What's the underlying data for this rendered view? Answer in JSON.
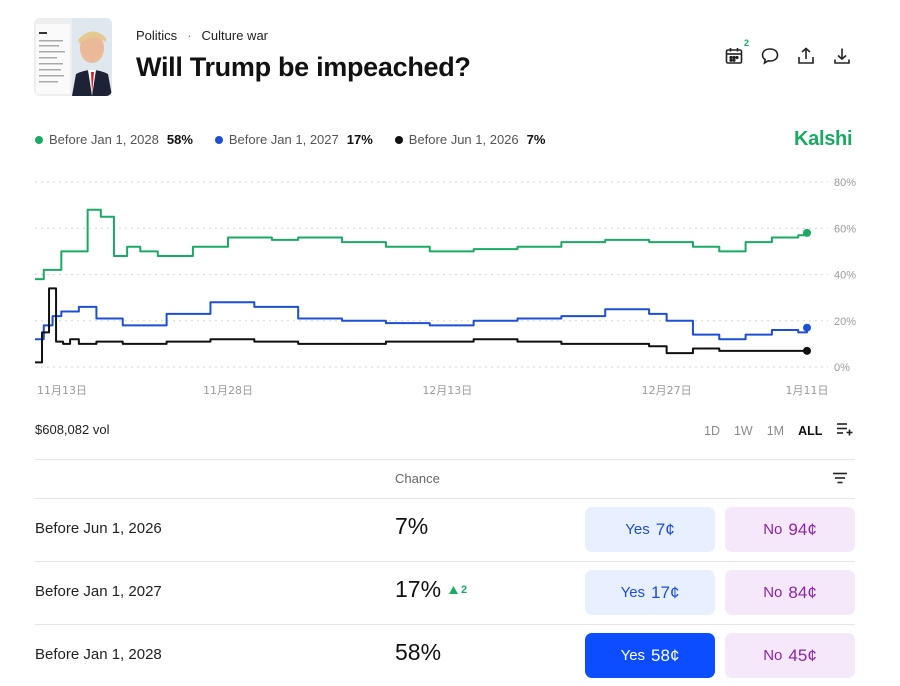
{
  "header": {
    "breadcrumb": [
      "Politics",
      "Culture war"
    ],
    "title": "Will Trump be impeached?"
  },
  "toolbar": {
    "calendar_badge": "2"
  },
  "brand": "Kalshi",
  "legend": [
    {
      "label": "Before Jan 1, 2028",
      "value": "58%",
      "color": "#1aaa64"
    },
    {
      "label": "Before Jan 1, 2027",
      "value": "17%",
      "color": "#1d4fd6"
    },
    {
      "label": "Before Jun 1, 2026",
      "value": "7%",
      "color": "#111111"
    }
  ],
  "chart_data": {
    "type": "line",
    "x_ticks": [
      "11月13日",
      "11月28日",
      "12月13日",
      "12月27日",
      "1月11日"
    ],
    "y_ticks": [
      "80%",
      "60%",
      "40%",
      "20%",
      "0%"
    ],
    "ylim": [
      0,
      80
    ],
    "grid": true,
    "series": [
      {
        "name": "Before Jan 1, 2028",
        "color": "#1aaa64",
        "x": [
          0,
          1,
          3,
          6,
          7.5,
          9,
          10.5,
          12,
          14,
          18,
          22,
          27,
          30,
          35,
          40,
          45,
          50,
          55,
          60,
          65,
          70,
          75,
          78,
          81,
          84,
          87,
          88
        ],
        "values": [
          38,
          42,
          50,
          68,
          65,
          48,
          52,
          50,
          48,
          52,
          56,
          55,
          56,
          54,
          52,
          50,
          51,
          52,
          54,
          55,
          54,
          52,
          50,
          54,
          56,
          57,
          58
        ]
      },
      {
        "name": "Before Jan 1, 2027",
        "color": "#1d4fd6",
        "x": [
          0,
          1,
          2,
          3,
          5,
          7,
          10,
          15,
          20,
          25,
          30,
          35,
          40,
          45,
          50,
          55,
          60,
          65,
          70,
          72,
          75,
          78,
          81,
          84,
          87,
          88
        ],
        "values": [
          12,
          18,
          22,
          24,
          26,
          21,
          18,
          23,
          28,
          26,
          21,
          20,
          19,
          18,
          20,
          21,
          22,
          25,
          23,
          20,
          14,
          12,
          14,
          16,
          15,
          17
        ]
      },
      {
        "name": "Before Jun 1, 2026",
        "color": "#111111",
        "x": [
          0,
          0.8,
          1.6,
          2.4,
          3.2,
          4,
          5,
          7,
          10,
          15,
          20,
          25,
          30,
          35,
          40,
          45,
          50,
          55,
          60,
          65,
          70,
          72,
          75,
          78,
          81,
          84,
          87,
          88
        ],
        "values": [
          2,
          15,
          34,
          11,
          10,
          12,
          10,
          11,
          10,
          11,
          12,
          11,
          10,
          10,
          11,
          11,
          12,
          11,
          10,
          10,
          9,
          6,
          8,
          7,
          7,
          7,
          7,
          7
        ]
      }
    ],
    "x_max": 88,
    "tick_positions": [
      0,
      22,
      47,
      72,
      88
    ]
  },
  "volume": "$608,082 vol",
  "ranges": [
    {
      "label": "1D",
      "active": false
    },
    {
      "label": "1W",
      "active": false
    },
    {
      "label": "1M",
      "active": false
    },
    {
      "label": "ALL",
      "active": true
    }
  ],
  "table": {
    "chance_header": "Chance",
    "rows": [
      {
        "label": "Before Jun 1, 2026",
        "chance": "7%",
        "change": "",
        "yes_label": "Yes",
        "yes_price": "7¢",
        "no_label": "No",
        "no_price": "94¢",
        "yes_selected": false
      },
      {
        "label": "Before Jan 1, 2027",
        "chance": "17%",
        "change": "2",
        "yes_label": "Yes",
        "yes_price": "17¢",
        "no_label": "No",
        "no_price": "84¢",
        "yes_selected": false
      },
      {
        "label": "Before Jan 1, 2028",
        "chance": "58%",
        "change": "",
        "yes_label": "Yes",
        "yes_price": "58¢",
        "no_label": "No",
        "no_price": "45¢",
        "yes_selected": true
      }
    ]
  }
}
